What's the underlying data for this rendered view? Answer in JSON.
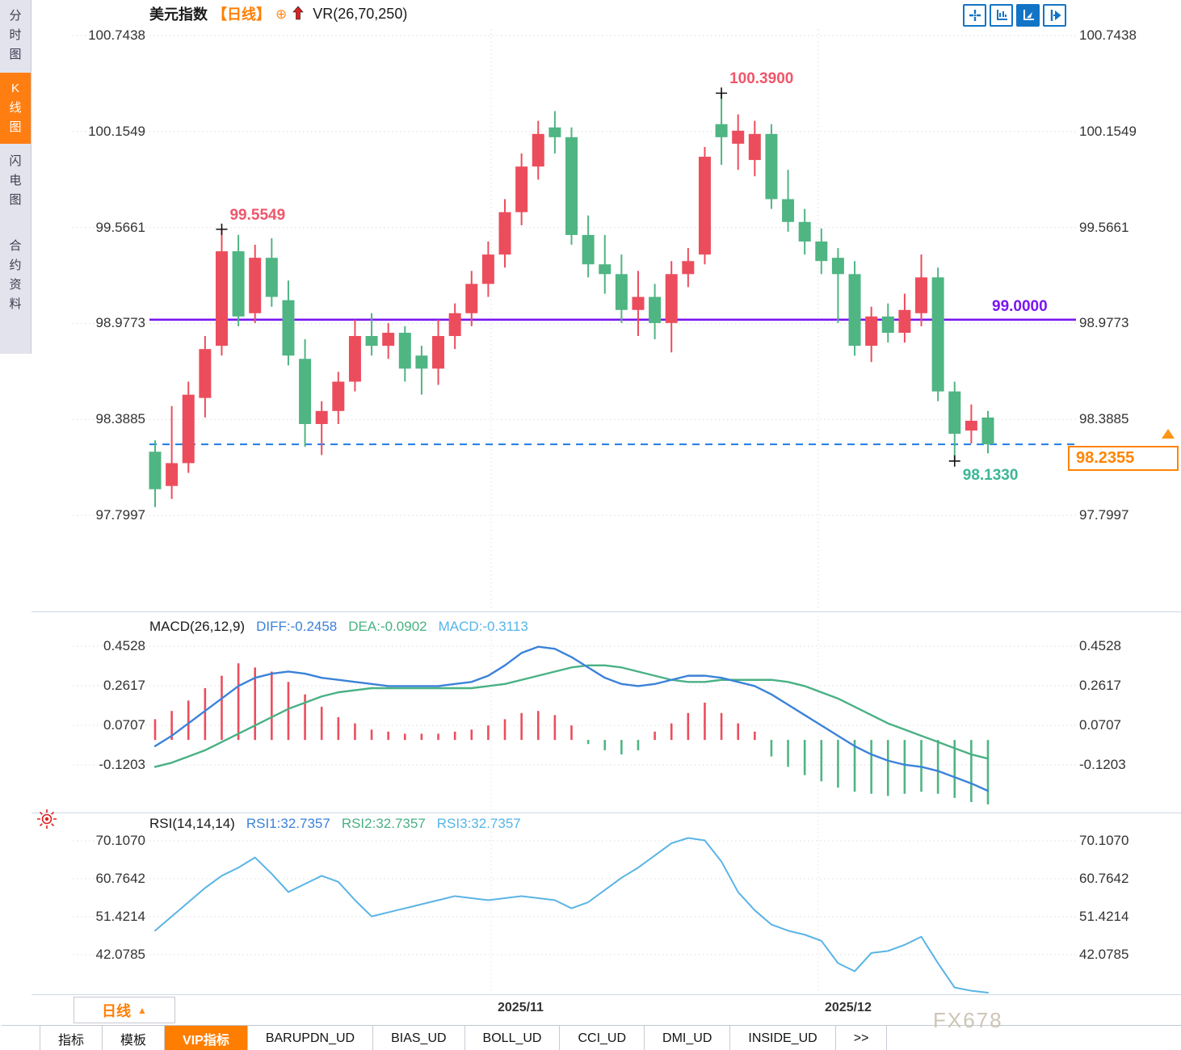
{
  "sidebar": {
    "items": [
      {
        "label": "分时图",
        "active": false
      },
      {
        "label": "K线图",
        "active": true
      },
      {
        "label": "闪电图",
        "active": false
      },
      {
        "label": "合约资料",
        "active": false
      }
    ]
  },
  "header": {
    "symbol": "美元指数",
    "period_tag": "【日线】",
    "plus_icon": "⊕",
    "overlay_indicator": "VR(26,70,250)"
  },
  "toolbar": {
    "icons": [
      "crosshair-icon",
      "axis-scale-icon",
      "axis-pointer-icon",
      "shift-right-icon"
    ]
  },
  "xaxis": {
    "labels": [
      "2025/11",
      "2025/12"
    ]
  },
  "period_box": {
    "label": "日线",
    "arrow": "▲"
  },
  "watermark": "FX678",
  "tabs": [
    {
      "label": "指标",
      "active": false
    },
    {
      "label": "模板",
      "active": false
    },
    {
      "label": "VIP指标",
      "active": true
    },
    {
      "label": "BARUPDN_UD",
      "active": false
    },
    {
      "label": "BIAS_UD",
      "active": false
    },
    {
      "label": "BOLL_UD",
      "active": false
    },
    {
      "label": "CCI_UD",
      "active": false
    },
    {
      "label": "DMI_UD",
      "active": false
    },
    {
      "label": "INSIDE_UD",
      "active": false
    },
    {
      "label": ">>",
      "active": false
    }
  ],
  "colors": {
    "up": "#ec4d5c",
    "down": "#4fb583",
    "diff_line": "#3b82d8",
    "dea_line": "#49b184",
    "rsi_line": "#5ab4e5",
    "support_line": "#7b16f0",
    "last_price_line": "#1e7ce8",
    "accent_orange": "#ff7e00",
    "annotation_red": "#f0566b",
    "annotation_teal": "#3bb795"
  },
  "chart_data": [
    {
      "type": "candlestick",
      "title": "美元指数 日线",
      "y_ticks": [
        "100.7438",
        "100.1549",
        "99.5661",
        "98.9773",
        "98.3885",
        "97.7997"
      ],
      "ylim": [
        97.5,
        100.9
      ],
      "x_labels": [
        "2025/11",
        "2025/12"
      ],
      "support_line": {
        "value": 99.0,
        "label": "99.0000"
      },
      "last_price": {
        "value": 98.2355,
        "label": "98.2355"
      },
      "annotations": [
        {
          "label": "99.5549",
          "index": 4,
          "type": "high"
        },
        {
          "label": "100.3900",
          "index": 34,
          "type": "high"
        },
        {
          "label": "98.1330",
          "index": 48,
          "type": "low"
        }
      ],
      "candles_ohlc": [
        [
          98.19,
          98.26,
          97.85,
          97.96
        ],
        [
          97.98,
          98.47,
          97.9,
          98.12
        ],
        [
          98.12,
          98.62,
          98.06,
          98.54
        ],
        [
          98.52,
          98.9,
          98.4,
          98.82
        ],
        [
          98.84,
          99.5549,
          98.78,
          99.42
        ],
        [
          99.42,
          99.52,
          98.96,
          99.02
        ],
        [
          99.04,
          99.46,
          98.98,
          99.38
        ],
        [
          99.38,
          99.5,
          99.08,
          99.14
        ],
        [
          99.12,
          99.24,
          98.72,
          98.78
        ],
        [
          98.76,
          98.88,
          98.22,
          98.36
        ],
        [
          98.36,
          98.5,
          98.17,
          98.44
        ],
        [
          98.44,
          98.68,
          98.36,
          98.62
        ],
        [
          98.62,
          99.0,
          98.56,
          98.9
        ],
        [
          98.9,
          99.04,
          98.78,
          98.84
        ],
        [
          98.84,
          98.98,
          98.76,
          98.92
        ],
        [
          98.92,
          98.96,
          98.62,
          98.7
        ],
        [
          98.78,
          98.84,
          98.54,
          98.7
        ],
        [
          98.7,
          99.0,
          98.6,
          98.9
        ],
        [
          98.9,
          99.1,
          98.82,
          99.04
        ],
        [
          99.04,
          99.3,
          98.96,
          99.22
        ],
        [
          99.22,
          99.48,
          99.14,
          99.4
        ],
        [
          99.4,
          99.74,
          99.32,
          99.66
        ],
        [
          99.66,
          100.02,
          99.58,
          99.94
        ],
        [
          99.94,
          100.22,
          99.86,
          100.14
        ],
        [
          100.18,
          100.28,
          100.02,
          100.12
        ],
        [
          100.12,
          100.18,
          99.46,
          99.52
        ],
        [
          99.52,
          99.64,
          99.26,
          99.34
        ],
        [
          99.34,
          99.52,
          99.16,
          99.28
        ],
        [
          99.28,
          99.4,
          98.98,
          99.06
        ],
        [
          99.06,
          99.3,
          98.9,
          99.14
        ],
        [
          99.14,
          99.22,
          98.88,
          98.98
        ],
        [
          98.98,
          99.36,
          98.8,
          99.28
        ],
        [
          99.28,
          99.44,
          99.2,
          99.36
        ],
        [
          99.4,
          100.06,
          99.34,
          100.0
        ],
        [
          100.2,
          100.39,
          99.95,
          100.12
        ],
        [
          100.08,
          100.26,
          99.92,
          100.16
        ],
        [
          99.98,
          100.22,
          99.88,
          100.14
        ],
        [
          100.14,
          100.2,
          99.68,
          99.74
        ],
        [
          99.74,
          99.92,
          99.54,
          99.6
        ],
        [
          99.6,
          99.68,
          99.4,
          99.48
        ],
        [
          99.48,
          99.56,
          99.28,
          99.36
        ],
        [
          99.38,
          99.44,
          98.98,
          99.28
        ],
        [
          99.28,
          99.36,
          98.78,
          98.84
        ],
        [
          98.84,
          99.08,
          98.74,
          99.02
        ],
        [
          99.02,
          99.1,
          98.86,
          98.92
        ],
        [
          98.92,
          99.16,
          98.86,
          99.06
        ],
        [
          99.04,
          99.4,
          98.96,
          99.26
        ],
        [
          99.26,
          99.32,
          98.5,
          98.56
        ],
        [
          98.56,
          98.62,
          98.133,
          98.3
        ],
        [
          98.32,
          98.48,
          98.24,
          98.38
        ],
        [
          98.4,
          98.44,
          98.18,
          98.2355
        ]
      ]
    },
    {
      "type": "macd-histogram",
      "title": "MACD(26,12,9)",
      "readout_diff": "DIFF:-0.2458",
      "readout_dea": "DEA:-0.0902",
      "readout_macd": "MACD:-0.3113",
      "y_ticks": [
        "0.4528",
        "0.2617",
        "0.0707",
        "-0.1203"
      ],
      "series": [
        {
          "name": "DIFF",
          "values": [
            -0.03,
            0.02,
            0.08,
            0.14,
            0.2,
            0.26,
            0.3,
            0.32,
            0.33,
            0.32,
            0.3,
            0.29,
            0.28,
            0.27,
            0.26,
            0.26,
            0.26,
            0.26,
            0.27,
            0.28,
            0.31,
            0.36,
            0.42,
            0.45,
            0.44,
            0.4,
            0.35,
            0.3,
            0.27,
            0.26,
            0.27,
            0.29,
            0.31,
            0.31,
            0.3,
            0.28,
            0.26,
            0.22,
            0.17,
            0.12,
            0.07,
            0.02,
            -0.03,
            -0.07,
            -0.1,
            -0.12,
            -0.13,
            -0.15,
            -0.18,
            -0.21,
            -0.2458
          ]
        },
        {
          "name": "DEA",
          "values": [
            -0.13,
            -0.11,
            -0.08,
            -0.05,
            -0.01,
            0.03,
            0.07,
            0.11,
            0.15,
            0.18,
            0.21,
            0.23,
            0.24,
            0.25,
            0.25,
            0.25,
            0.25,
            0.25,
            0.25,
            0.25,
            0.26,
            0.27,
            0.29,
            0.31,
            0.33,
            0.35,
            0.36,
            0.36,
            0.35,
            0.33,
            0.31,
            0.29,
            0.28,
            0.28,
            0.29,
            0.29,
            0.29,
            0.29,
            0.28,
            0.26,
            0.23,
            0.2,
            0.16,
            0.12,
            0.08,
            0.05,
            0.02,
            -0.01,
            -0.04,
            -0.07,
            -0.0902
          ]
        },
        {
          "name": "MACD-hist",
          "values": [
            0.1,
            0.14,
            0.19,
            0.25,
            0.31,
            0.37,
            0.35,
            0.33,
            0.28,
            0.22,
            0.16,
            0.11,
            0.08,
            0.05,
            0.04,
            0.03,
            0.03,
            0.03,
            0.04,
            0.05,
            0.07,
            0.1,
            0.13,
            0.14,
            0.12,
            0.07,
            -0.02,
            -0.05,
            -0.07,
            -0.05,
            0.04,
            0.08,
            0.13,
            0.18,
            0.13,
            0.08,
            0.04,
            -0.08,
            -0.13,
            -0.17,
            -0.2,
            -0.23,
            -0.25,
            -0.26,
            -0.27,
            -0.26,
            -0.25,
            -0.26,
            -0.28,
            -0.3,
            -0.3113
          ]
        }
      ]
    },
    {
      "type": "line",
      "title": "RSI(14,14,14)",
      "readout_rsi1": "RSI1:32.7357",
      "readout_rsi2": "RSI2:32.7357",
      "readout_rsi3": "RSI3:32.7357",
      "y_ticks": [
        "70.1070",
        "60.7642",
        "51.4214",
        "42.0785"
      ],
      "series": [
        {
          "name": "RSI1",
          "values": [
            48,
            51.5,
            55,
            58.5,
            61.5,
            63.5,
            66,
            62,
            57.5,
            59.5,
            61.5,
            60,
            55.5,
            51.5,
            52.5,
            53.5,
            54.5,
            55.5,
            56.5,
            56,
            55.5,
            56,
            56.5,
            56,
            55.5,
            53.5,
            55,
            58,
            61,
            63.5,
            66.5,
            69.5,
            70.8,
            70.2,
            65,
            57.5,
            53,
            49.5,
            48,
            47,
            45.5,
            40,
            38,
            42.5,
            43,
            44.5,
            46.5,
            40,
            34,
            33.2,
            32.7357
          ]
        }
      ]
    }
  ]
}
